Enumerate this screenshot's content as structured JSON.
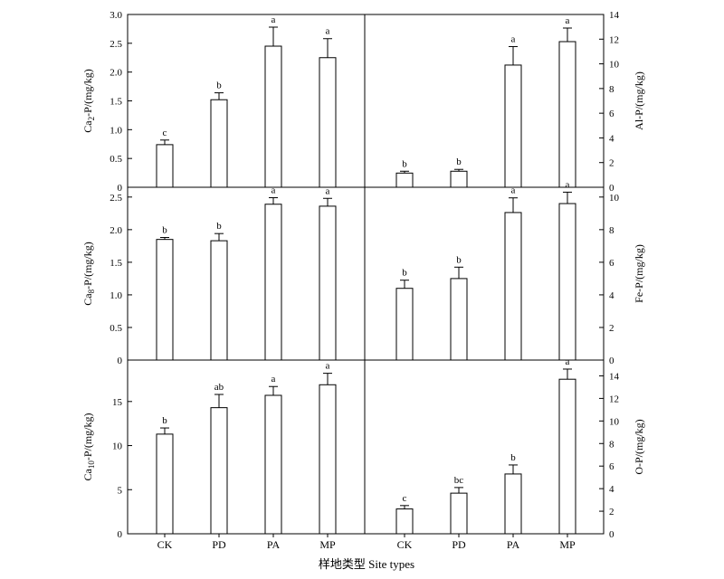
{
  "figure": {
    "xlabel": "样地类型  Site types"
  },
  "chart_data": [
    {
      "type": "bar",
      "panel": "top-left",
      "categories": [
        "CK",
        "PD",
        "PA",
        "MP"
      ],
      "values": [
        0.74,
        1.52,
        2.45,
        2.25
      ],
      "errors": [
        0.08,
        0.12,
        0.33,
        0.33
      ],
      "sig_labels": [
        "c",
        "b",
        "a",
        "a"
      ],
      "ylabel": {
        "base": "Ca",
        "sub": "2",
        "rest": "-P/(mg/kg)"
      },
      "ylim": [
        0,
        3.0
      ],
      "yticks": [
        "0",
        "0.5",
        "1.0",
        "1.5",
        "2.0",
        "2.5",
        "3.0"
      ],
      "axis_side": "left"
    },
    {
      "type": "bar",
      "panel": "top-right",
      "categories": [
        "CK",
        "PD",
        "PA",
        "MP"
      ],
      "values": [
        1.15,
        1.3,
        9.9,
        11.8
      ],
      "errors": [
        0.15,
        0.15,
        1.5,
        1.1
      ],
      "sig_labels": [
        "b",
        "b",
        "a",
        "a"
      ],
      "ylabel": {
        "base": "Al-P/(mg/kg)",
        "sub": "",
        "rest": ""
      },
      "ylim": [
        0,
        14
      ],
      "yticks": [
        "0",
        "2",
        "4",
        "6",
        "8",
        "10",
        "12",
        "14"
      ],
      "axis_side": "right"
    },
    {
      "type": "bar",
      "panel": "middle-left",
      "categories": [
        "CK",
        "PD",
        "PA",
        "MP"
      ],
      "values": [
        1.85,
        1.83,
        2.39,
        2.36
      ],
      "errors": [
        0.03,
        0.11,
        0.1,
        0.12
      ],
      "sig_labels": [
        "b",
        "b",
        "a",
        "a"
      ],
      "ylabel": {
        "base": "Ca",
        "sub": "8",
        "rest": "-P/(mg/kg)"
      },
      "ylim": [
        0,
        2.65
      ],
      "yticks": [
        "0",
        "0.5",
        "1.0",
        "1.5",
        "2.0",
        "2.5"
      ],
      "axis_side": "left"
    },
    {
      "type": "bar",
      "panel": "middle-right",
      "categories": [
        "CK",
        "PD",
        "PA",
        "MP"
      ],
      "values": [
        4.4,
        5.0,
        9.05,
        9.6
      ],
      "errors": [
        0.5,
        0.7,
        0.9,
        0.7
      ],
      "sig_labels": [
        "b",
        "b",
        "a",
        "a"
      ],
      "ylabel": {
        "base": "Fe-P/(mg/kg)",
        "sub": "",
        "rest": ""
      },
      "ylim": [
        0,
        10.6
      ],
      "yticks": [
        "0",
        "2",
        "4",
        "6",
        "8",
        "10"
      ],
      "axis_side": "right"
    },
    {
      "type": "bar",
      "panel": "bottom-left",
      "categories": [
        "CK",
        "PD",
        "PA",
        "MP"
      ],
      "values": [
        11.3,
        14.3,
        15.7,
        16.9
      ],
      "errors": [
        0.7,
        1.5,
        1.0,
        1.3
      ],
      "sig_labels": [
        "b",
        "ab",
        "a",
        "a"
      ],
      "ylabel": {
        "base": "Ca",
        "sub": "10",
        "rest": "-P/(mg/kg)"
      },
      "ylim": [
        0,
        19.7
      ],
      "yticks": [
        "0",
        "5",
        "10",
        "15"
      ],
      "axis_side": "left"
    },
    {
      "type": "bar",
      "panel": "bottom-right",
      "categories": [
        "CK",
        "PD",
        "PA",
        "MP"
      ],
      "values": [
        2.2,
        3.6,
        5.3,
        13.7
      ],
      "errors": [
        0.3,
        0.5,
        0.8,
        0.9
      ],
      "sig_labels": [
        "c",
        "bc",
        "b",
        "a"
      ],
      "ylabel": {
        "base": "O-P/(mg/kg)",
        "sub": "",
        "rest": ""
      },
      "ylim": [
        0,
        15.4
      ],
      "yticks": [
        "0",
        "2",
        "4",
        "6",
        "8",
        "10",
        "12",
        "14"
      ],
      "axis_side": "right"
    }
  ]
}
